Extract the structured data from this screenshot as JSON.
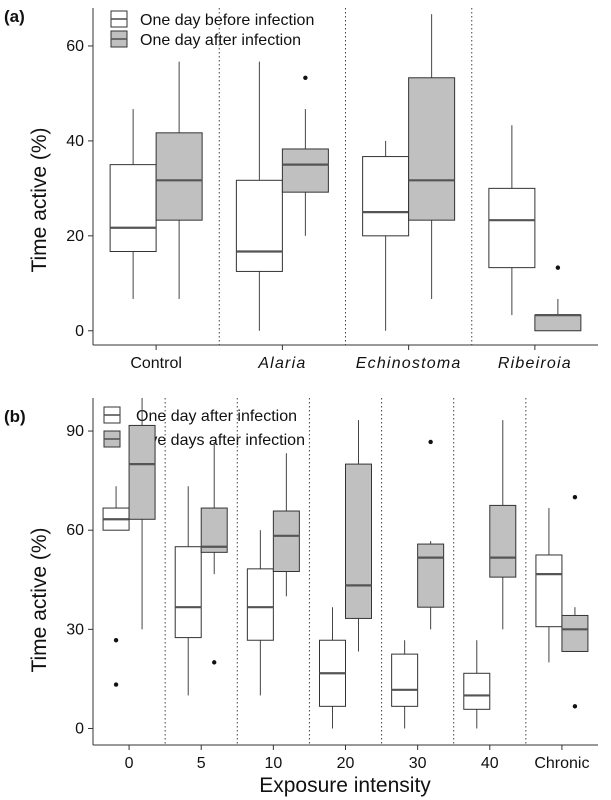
{
  "figure": {
    "panel_a_label": "(a)",
    "panel_b_label": "(b)"
  },
  "colors": {
    "before_fill": "#ffffff",
    "after_fill": "#c0c0c0",
    "box_stroke": "#333333",
    "median_stroke": "#555555"
  },
  "chart_data": [
    {
      "type": "box",
      "panel": "(a)",
      "ylabel": "Time active (%)",
      "xlabel": "",
      "ylim": [
        -3,
        68
      ],
      "yticks": [
        0,
        20,
        40,
        60
      ],
      "categories": [
        "Control",
        "Alaria",
        "Echinostoma",
        "Ribeiroia"
      ],
      "italic_categories": [
        false,
        true,
        true,
        true
      ],
      "legend": [
        "One day before infection",
        "One day after infection"
      ],
      "series": [
        {
          "name": "One day before infection",
          "fill": "#ffffff",
          "boxes": [
            {
              "min": 6.7,
              "q1": 16.7,
              "median": 21.7,
              "q3": 35.0,
              "max": 46.7,
              "outliers": []
            },
            {
              "min": 0.0,
              "q1": 12.5,
              "median": 16.7,
              "q3": 31.7,
              "max": 56.7,
              "outliers": []
            },
            {
              "min": 0.0,
              "q1": 20.0,
              "median": 25.0,
              "q3": 36.7,
              "max": 40.0,
              "outliers": []
            },
            {
              "min": 3.3,
              "q1": 13.3,
              "median": 23.3,
              "q3": 30.0,
              "max": 43.3,
              "outliers": []
            }
          ]
        },
        {
          "name": "One day after infection",
          "fill": "#c0c0c0",
          "boxes": [
            {
              "min": 6.7,
              "q1": 23.3,
              "median": 31.7,
              "q3": 41.7,
              "max": 56.7,
              "outliers": []
            },
            {
              "min": 20.0,
              "q1": 29.2,
              "median": 35.0,
              "q3": 38.3,
              "max": 46.7,
              "outliers": [
                53.3
              ]
            },
            {
              "min": 6.7,
              "q1": 23.3,
              "median": 31.7,
              "q3": 53.3,
              "max": 66.7,
              "outliers": []
            },
            {
              "min": 0.0,
              "q1": 0.0,
              "median": 3.3,
              "q3": 3.3,
              "max": 6.7,
              "outliers": [
                13.3
              ]
            }
          ]
        }
      ]
    },
    {
      "type": "box",
      "panel": "(b)",
      "ylabel": "Time active (%)",
      "xlabel": "Exposure intensity",
      "ylim": [
        -5,
        100
      ],
      "yticks": [
        0,
        30,
        60,
        90
      ],
      "categories": [
        "0",
        "5",
        "10",
        "20",
        "30",
        "40",
        "Chronic"
      ],
      "legend": [
        "One day after infection",
        "Five days after infection"
      ],
      "series": [
        {
          "name": "One day after infection",
          "fill": "#ffffff",
          "boxes": [
            {
              "min": 60.0,
              "q1": 60.0,
              "median": 63.3,
              "q3": 66.7,
              "max": 73.3,
              "outliers": [
                26.7,
                13.3
              ]
            },
            {
              "min": 10.0,
              "q1": 27.5,
              "median": 36.7,
              "q3": 55.0,
              "max": 73.3,
              "outliers": []
            },
            {
              "min": 10.0,
              "q1": 26.7,
              "median": 36.7,
              "q3": 48.3,
              "max": 60.0,
              "outliers": []
            },
            {
              "min": 0.0,
              "q1": 6.7,
              "median": 16.7,
              "q3": 26.7,
              "max": 36.7,
              "outliers": []
            },
            {
              "min": 0.0,
              "q1": 6.7,
              "median": 11.7,
              "q3": 22.5,
              "max": 26.7,
              "outliers": []
            },
            {
              "min": 0.0,
              "q1": 5.8,
              "median": 10.0,
              "q3": 16.7,
              "max": 26.7,
              "outliers": []
            },
            {
              "min": 20.0,
              "q1": 30.8,
              "median": 46.7,
              "q3": 52.5,
              "max": 66.7,
              "outliers": []
            }
          ]
        },
        {
          "name": "Five days after infection",
          "fill": "#c0c0c0",
          "boxes": [
            {
              "min": 30.0,
              "q1": 63.3,
              "median": 80.0,
              "q3": 91.7,
              "max": 100.0,
              "outliers": []
            },
            {
              "min": 46.7,
              "q1": 53.3,
              "median": 55.0,
              "q3": 66.7,
              "max": 86.7,
              "outliers": [
                20.0
              ]
            },
            {
              "min": 40.0,
              "q1": 47.5,
              "median": 58.3,
              "q3": 65.8,
              "max": 83.3,
              "outliers": []
            },
            {
              "min": 23.3,
              "q1": 33.3,
              "median": 43.3,
              "q3": 80.0,
              "max": 93.3,
              "outliers": []
            },
            {
              "min": 30.0,
              "q1": 36.7,
              "median": 51.7,
              "q3": 55.8,
              "max": 56.7,
              "outliers": [
                86.7
              ]
            },
            {
              "min": 30.0,
              "q1": 45.8,
              "median": 51.7,
              "q3": 67.5,
              "max": 93.3,
              "outliers": []
            },
            {
              "min": 23.3,
              "q1": 23.3,
              "median": 30.0,
              "q3": 34.2,
              "max": 36.7,
              "outliers": [
                70.0,
                6.7
              ]
            }
          ]
        }
      ]
    }
  ]
}
